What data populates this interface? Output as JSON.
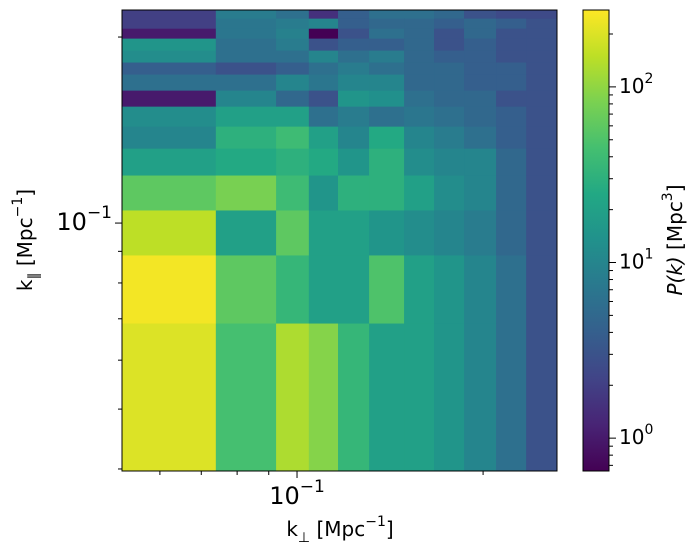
{
  "chart_data": {
    "type": "heatmap",
    "log_x": true,
    "log_y": true,
    "log_color": true,
    "colormap": "viridis",
    "xlabel": [
      "k",
      "⊥",
      " [Mpc",
      "−1",
      "]"
    ],
    "ylabel": [
      "k",
      "∥",
      " [Mpc",
      "−1",
      "]"
    ],
    "colorbar_label": [
      "P(k)",
      " [Mpc",
      "3",
      "]"
    ],
    "xlim": [
      0.0521,
      0.2634
    ],
    "ylim": [
      0.0397,
      0.2212
    ],
    "xticks": [
      {
        "value": 0.1,
        "label": "10",
        "exponent": "−1"
      }
    ],
    "yticks": [
      {
        "value": 0.1,
        "label": "10",
        "exponent": "−1"
      }
    ],
    "xminorticks": [
      0.06,
      0.07,
      0.08,
      0.09,
      0.2
    ],
    "yminorticks": [
      0.04,
      0.05,
      0.06,
      0.07,
      0.08,
      0.09,
      0.2
    ],
    "clim": [
      0.65,
      274
    ],
    "cticks": [
      {
        "value": 1,
        "label": "10",
        "exponent": "0"
      },
      {
        "value": 10,
        "label": "10",
        "exponent": "1"
      },
      {
        "value": 100,
        "label": "10",
        "exponent": "2"
      }
    ],
    "cminorticks": [
      0.7,
      0.8,
      0.9,
      2,
      3,
      4,
      5,
      6,
      7,
      8,
      9,
      20,
      30,
      40,
      50,
      60,
      70,
      80,
      90,
      200
    ],
    "x_edges": [
      0.0521,
      0.0739,
      0.0925,
      0.1045,
      0.1165,
      0.1308,
      0.149,
      0.1666,
      0.1863,
      0.2099,
      0.2348,
      0.2634
    ],
    "y_edges": [
      0.0397,
      0.0689,
      0.0888,
      0.105,
      0.1196,
      0.1322,
      0.1435,
      0.1546,
      0.1641,
      0.1742,
      0.1822,
      0.1905,
      0.1992,
      0.2067,
      0.2146,
      0.2212
    ],
    "values": [
      [
        200,
        45,
        130,
        90,
        35,
        20,
        20,
        15,
        10,
        6,
        3
      ],
      [
        250,
        60,
        35,
        20,
        20,
        50,
        20,
        15,
        10,
        6,
        3
      ],
      [
        150,
        20,
        60,
        20,
        20,
        15,
        12,
        10,
        8,
        5,
        3
      ],
      [
        60,
        80,
        40,
        15,
        30,
        30,
        20,
        12,
        10,
        5,
        3
      ],
      [
        20,
        25,
        30,
        25,
        15,
        30,
        12,
        10,
        10,
        5,
        3
      ],
      [
        10,
        30,
        40,
        20,
        10,
        25,
        10,
        8,
        6,
        4,
        3
      ],
      [
        12,
        20,
        20,
        6,
        8,
        6,
        7,
        6,
        5,
        4,
        3
      ],
      [
        1,
        10,
        5,
        3,
        15,
        13,
        6,
        5,
        5,
        3,
        3
      ],
      [
        6,
        6,
        10,
        7,
        10,
        10,
        5,
        5,
        4,
        4,
        3
      ],
      [
        4,
        3,
        4,
        6,
        8,
        6,
        5,
        5,
        4,
        4,
        3
      ],
      [
        12,
        6,
        6,
        10,
        6,
        8,
        5,
        4,
        4,
        3,
        3
      ],
      [
        15,
        6,
        8,
        3,
        4,
        4,
        5,
        3,
        4,
        3,
        3
      ],
      [
        1,
        7,
        9,
        0.65,
        3,
        6,
        5,
        3,
        5,
        3,
        3
      ],
      [
        2,
        7,
        8,
        10,
        4,
        5,
        5,
        4,
        5,
        4,
        3
      ],
      [
        2,
        8,
        6,
        1.5,
        4,
        6,
        6,
        5,
        3,
        2.5,
        2.5
      ]
    ]
  }
}
